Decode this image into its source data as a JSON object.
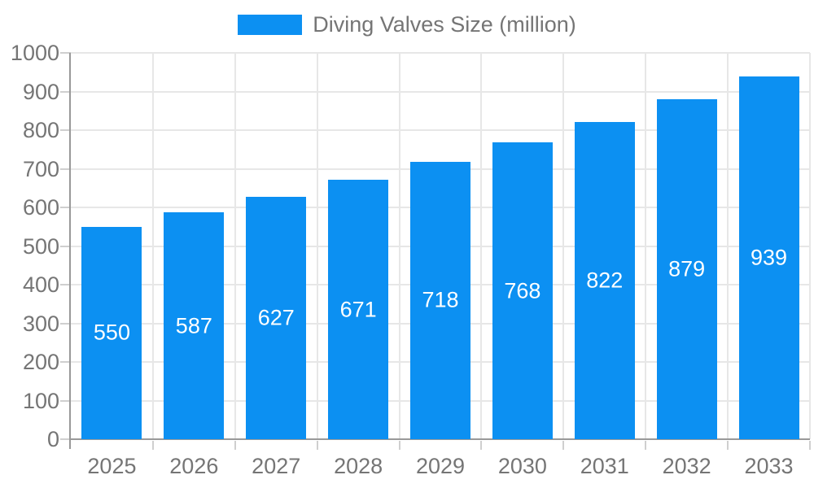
{
  "legend": {
    "label": "Diving Valves Size (million)"
  },
  "colors": {
    "bar": "#0C90F2",
    "axis": "#999999",
    "grid": "#E7E7E7",
    "tick": "#CFCFCF",
    "axis_text": "#757575",
    "bar_label_text": "#FFFFFF",
    "background": "#FFFFFF"
  },
  "chart_data": {
    "type": "bar",
    "title": "",
    "categories": [
      "2025",
      "2026",
      "2027",
      "2028",
      "2029",
      "2030",
      "2031",
      "2032",
      "2033"
    ],
    "series": [
      {
        "name": "Diving Valves Size (million)",
        "values": [
          550,
          587,
          627,
          671,
          718,
          768,
          822,
          879,
          939
        ]
      }
    ],
    "xlabel": "",
    "ylabel": "",
    "ylim": [
      0,
      1000
    ],
    "ytick_step": 100,
    "yticks": [
      0,
      100,
      200,
      300,
      400,
      500,
      600,
      700,
      800,
      900,
      1000
    ],
    "grid": true,
    "legend_position": "top-center",
    "value_labels": "inside-center"
  }
}
